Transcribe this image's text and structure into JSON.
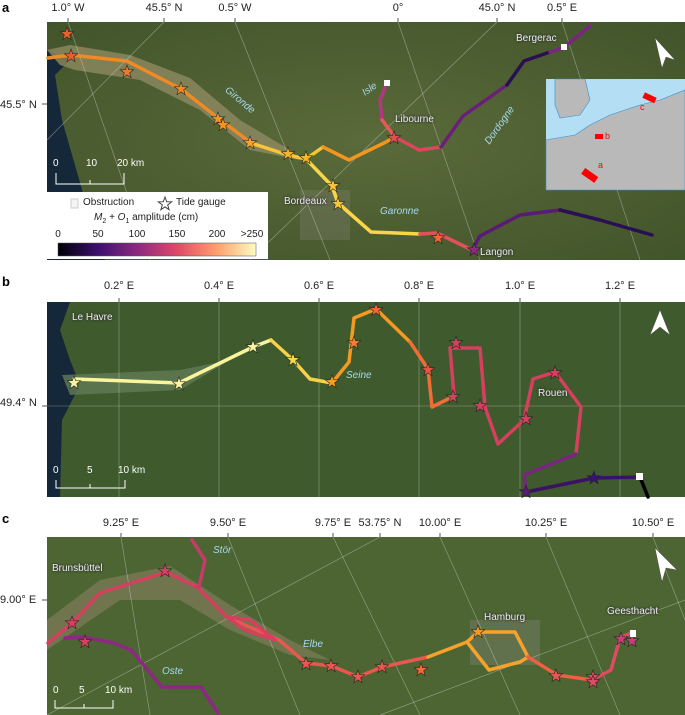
{
  "colors": {
    "colormap": [
      "#000004",
      "#3b0f70",
      "#8c2981",
      "#de4968",
      "#fe9f6d",
      "#fcfdbf"
    ],
    "obstruction": "#ffffff",
    "inset_sea": "#b3def4",
    "inset_land": "#b9b9b9",
    "marker": "#ff0000"
  },
  "panel_a": {
    "letter": "a",
    "x_ticks": [
      "1.0° W",
      "45.5° N",
      "0.5° W",
      "0°",
      "45.0° N",
      "0.5° E"
    ],
    "y_ticks": [
      "45.5° N"
    ],
    "places": [
      "Bergerac",
      "Libourne",
      "Bordeaux",
      "Langon"
    ],
    "rivers": [
      "Gironde",
      "Isle",
      "Dordogne",
      "Garonne"
    ],
    "scale": [
      "0",
      "10",
      "20 km"
    ],
    "inset_markers": [
      "a",
      "b",
      "c"
    ],
    "legend": {
      "obstruction": "Obstruction",
      "tide_gauge": "Tide gauge",
      "title_m": "M",
      "title_sub2": "2",
      "title_plus": " + O",
      "title_sub1": "1",
      "title_rest": " amplitude (cm)",
      "ticks": [
        "0",
        "50",
        "100",
        "150",
        "200",
        ">250"
      ]
    }
  },
  "panel_b": {
    "letter": "b",
    "x_ticks": [
      "0.2° E",
      "0.4° E",
      "0.6° E",
      "0.8° E",
      "1.0° E",
      "1.2° E"
    ],
    "y_ticks": [
      "49.4° N"
    ],
    "places": [
      "Le Havre",
      "Rouen"
    ],
    "rivers": [
      "Seine"
    ],
    "scale": [
      "0",
      "5",
      "10 km"
    ]
  },
  "panel_c": {
    "letter": "c",
    "x_ticks": [
      "9.25° E",
      "9.50° E",
      "9.75° E",
      "53.75° N",
      "10.00° E",
      "10.25° E",
      "10.50° E"
    ],
    "y_ticks": [
      "9.00° E"
    ],
    "places": [
      "Brunsbüttel",
      "Hamburg",
      "Geesthacht"
    ],
    "rivers": [
      "Stör",
      "Elbe",
      "Oste"
    ],
    "scale": [
      "0",
      "5",
      "10 km"
    ]
  }
}
